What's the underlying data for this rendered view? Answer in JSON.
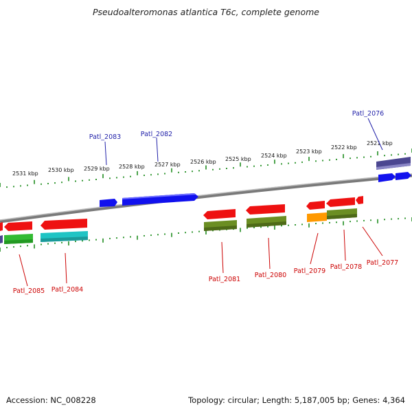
{
  "title": "Pseudoalteromonas atlantica T6c, complete genome",
  "footer": {
    "accession": "Accession: NC_008228",
    "summary": "Topology: circular; Length: 5,187,005 bp; Genes: 4,364"
  },
  "colors": {
    "backbone": "#8c8c8c",
    "ticks": "#1e8c1e",
    "label_forward": "#1f1fa8",
    "label_reverse": "#cc0000",
    "cds_red": "#ee1111",
    "cds_blue": "#1111ee",
    "cds_olive": "#6b8e23",
    "cds_green": "#33bb33",
    "cds_cyan": "#1fc4c4",
    "cds_orange": "#ff9900",
    "cds_slate": "#4b4690"
  },
  "scale": {
    "unit": "kbp",
    "labels": [
      "2531 kbp",
      "2530 kbp",
      "2529 kbp",
      "2528 kbp",
      "2527 kbp",
      "2526 kbp",
      "2525 kbp",
      "2524 kbp",
      "2523 kbp",
      "2522 kbp",
      "2521 kbp"
    ]
  },
  "forward_genes": [
    {
      "name": "Patl_2083"
    },
    {
      "name": "Patl_2082"
    },
    {
      "name": "Patl_2076"
    }
  ],
  "reverse_genes": [
    {
      "name": "Patl_2085"
    },
    {
      "name": "Patl_2084"
    },
    {
      "name": "Patl_2081"
    },
    {
      "name": "Patl_2080"
    },
    {
      "name": "Patl_2079"
    },
    {
      "name": "Patl_2078"
    },
    {
      "name": "Patl_2077"
    }
  ]
}
